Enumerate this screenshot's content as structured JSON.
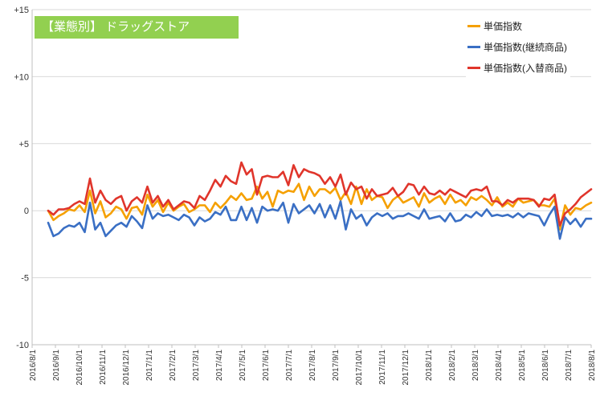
{
  "chart_data": {
    "type": "line",
    "title": "【業態別】 ドラッグストア",
    "xlabel": "",
    "ylabel": "",
    "ylim": [
      -10,
      15
    ],
    "yticks": [
      -10,
      -5,
      0,
      5,
      10,
      15
    ],
    "ytick_labels": [
      "-10",
      "-5",
      "0",
      "+5",
      "+10",
      "+15"
    ],
    "x_tick_labels": [
      "2016/8/1",
      "2016/9/1",
      "2016/10/1",
      "2016/11/1",
      "2016/12/1",
      "2017/1/1",
      "2017/2/1",
      "2017/3/1",
      "2017/4/1",
      "2017/5/1",
      "2017/6/1",
      "2017/7/1",
      "2017/8/1",
      "2017/9/1",
      "2017/10/1",
      "2017/11/1",
      "2017/12/1",
      "2018/1/1",
      "2018/2/1",
      "2018/3/1",
      "2018/4/1",
      "2018/5/1",
      "2018/6/1",
      "2018/7/1",
      "2018/8/1"
    ],
    "grid": "horizontal",
    "legend_position": "top-right",
    "series": [
      {
        "name": "単価指数",
        "color": "#f5a000",
        "values": [
          0,
          -0.7,
          -0.4,
          -0.2,
          0.1,
          0,
          0.4,
          -0.1,
          1.5,
          -0.2,
          0.7,
          -0.5,
          -0.2,
          0.3,
          0.1,
          -0.6,
          0.2,
          0.3,
          -0.3,
          1.2,
          0.3,
          0.8,
          -0.1,
          0.6,
          0,
          0.3,
          0.5,
          -0.1,
          0.1,
          0.4,
          0.4,
          -0.1,
          0.6,
          0.2,
          0.6,
          1.1,
          0.8,
          1.3,
          0.8,
          0.9,
          1.8,
          0.9,
          1.4,
          0.3,
          1.5,
          1.3,
          1.5,
          1.4,
          2,
          0.8,
          1.8,
          1.1,
          1.6,
          1.6,
          1.3,
          1.7,
          0.8,
          1.4,
          0.5,
          1.8,
          0.5,
          1.6,
          0.8,
          1.1,
          1,
          0.2,
          0.8,
          1.1,
          0.6,
          0.8,
          1,
          0.3,
          1.3,
          0.6,
          0.9,
          1.1,
          0.5,
          1.2,
          0.6,
          0.8,
          0.4,
          1,
          0.8,
          1.1,
          0.8,
          0.4,
          1,
          0.3,
          0.6,
          0.3,
          0.9,
          0.6,
          0.7,
          0.8,
          0.4,
          0.4,
          0.3,
          0.9,
          -1.4,
          0.4,
          -0.3,
          0.2,
          0.1,
          0.4,
          0.6
        ]
      },
      {
        "name": "単価指数(継続商品)",
        "color": "#3a6fc4",
        "values": [
          -0.9,
          -1.9,
          -1.7,
          -1.3,
          -1.1,
          -1.2,
          -0.9,
          -1.6,
          0.6,
          -1.4,
          -0.9,
          -1.9,
          -1.5,
          -1.1,
          -0.9,
          -1.2,
          -0.4,
          -0.8,
          -1.3,
          0.4,
          -0.6,
          -0.2,
          -0.4,
          -0.3,
          -0.5,
          -0.7,
          -0.3,
          -0.5,
          -1.1,
          -0.5,
          -0.8,
          -0.6,
          -0.1,
          -0.3,
          0.3,
          -0.7,
          -0.7,
          0.3,
          -0.7,
          0.2,
          -0.9,
          0.3,
          0,
          0.1,
          0,
          0.6,
          -0.9,
          0.5,
          -0.2,
          0.1,
          0.4,
          -0.2,
          0.5,
          -0.5,
          0.4,
          -0.6,
          0.7,
          -1.4,
          0.1,
          -0.6,
          -0.3,
          -1.1,
          -0.5,
          -0.2,
          -0.4,
          -0.2,
          -0.6,
          -0.4,
          -0.4,
          -0.2,
          -0.4,
          -0.6,
          0.1,
          -0.6,
          -0.5,
          -0.4,
          -0.8,
          -0.2,
          -0.8,
          -0.7,
          -0.3,
          -0.5,
          -0.1,
          -0.4,
          0.1,
          -0.4,
          -0.3,
          -0.4,
          -0.3,
          -0.5,
          -0.2,
          -0.5,
          -0.2,
          -0.3,
          -0.4,
          -1.1,
          -0.3,
          0.3,
          -2.1,
          -0.5,
          -1,
          -0.6,
          -1.2,
          -0.6,
          -0.6
        ]
      },
      {
        "name": "単価指数(入替商品)",
        "color": "#e0352b",
        "values": [
          0,
          -0.3,
          0.1,
          0.1,
          0.2,
          0.5,
          0.7,
          0.5,
          2.4,
          0.6,
          1.5,
          0.8,
          0.5,
          0.9,
          1.1,
          0,
          0.7,
          1,
          0.6,
          1.8,
          0.6,
          1.1,
          0.3,
          0.8,
          0.1,
          0.4,
          0.7,
          0.6,
          0.2,
          1.1,
          0.8,
          1.5,
          2.3,
          1.8,
          2.6,
          2.2,
          2,
          3.6,
          2.7,
          3.1,
          1.2,
          2.5,
          2.6,
          2.5,
          2.5,
          2.9,
          1.9,
          3.4,
          2.5,
          3.1,
          2.9,
          2.8,
          2.6,
          2,
          2.5,
          1.8,
          2.7,
          1.2,
          2.1,
          1.6,
          1.8,
          0.9,
          1.6,
          1.1,
          1.2,
          1.3,
          1.7,
          1.1,
          1.4,
          2,
          1.9,
          1.2,
          1.8,
          1.3,
          1.2,
          1.5,
          1.2,
          1.6,
          1.4,
          1.2,
          1,
          1.5,
          1.6,
          1.5,
          1.8,
          0.7,
          0.7,
          0.4,
          0.8,
          0.6,
          0.9,
          0.9,
          0.9,
          0.8,
          0.3,
          0.9,
          0.8,
          1.2,
          -1.1,
          -0.2,
          0.1,
          0.5,
          1,
          1.3,
          1.6
        ]
      }
    ]
  }
}
